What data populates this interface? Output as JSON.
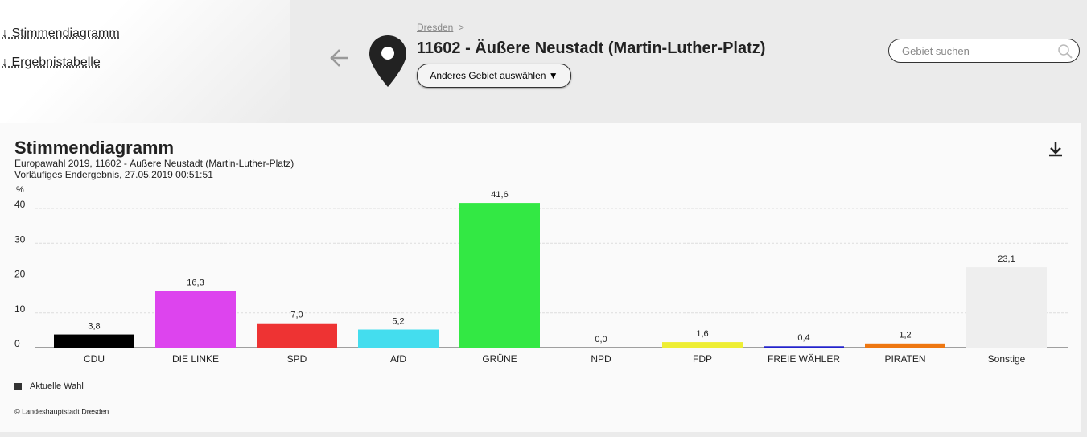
{
  "nav": {
    "links": [
      "↓ Stimmendiagramm",
      "↓ Ergebnistabelle"
    ]
  },
  "header": {
    "breadcrumb": "Dresden",
    "breadcrumb_separator": ">",
    "title": "11602 - Äußere Neustadt (Martin-Luther-Platz)",
    "button": "Anderes Gebiet auswählen ▼",
    "search_placeholder": "Gebiet suchen"
  },
  "chart_data": {
    "type": "bar",
    "title": "Stimmendiagramm",
    "subtitle": [
      "Europawahl 2019, 11602 - Äußere Neustadt (Martin-Luther-Platz)",
      "Vorläufiges Endergebnis, 27.05.2019 00:51:51"
    ],
    "y_label": "%",
    "categories": [
      "CDU",
      "DIE LINKE",
      "SPD",
      "AfD",
      "GRÜNE",
      "NPD",
      "FDP",
      "FREIE WÄHLER",
      "PIRATEN",
      "Sonstige"
    ],
    "series": [
      {
        "name": "Aktuelle Wahl",
        "color": "#333333",
        "colors": [
          "#000000",
          "#dd44ee",
          "#ee3333",
          "#44ddee",
          "#33e844",
          "#8b4513",
          "#eeee33",
          "#2222cc",
          "#ee7711",
          "#eeeeee"
        ],
        "values": [
          3.8,
          16.3,
          7.0,
          5.2,
          41.6,
          0.0,
          1.6,
          0.4,
          1.2,
          23.1
        ],
        "value_labels": [
          "3,8",
          "16,3",
          "7,0",
          "5,2",
          "41,6",
          "0,0",
          "1,6",
          "0,4",
          "1,2",
          "23,1"
        ]
      }
    ],
    "ylim": [
      0,
      45
    ],
    "yticks": [
      0,
      10,
      20,
      30,
      40
    ],
    "grid": true,
    "legend": "bottom-left",
    "source": "© Landeshauptstadt Dresden"
  }
}
